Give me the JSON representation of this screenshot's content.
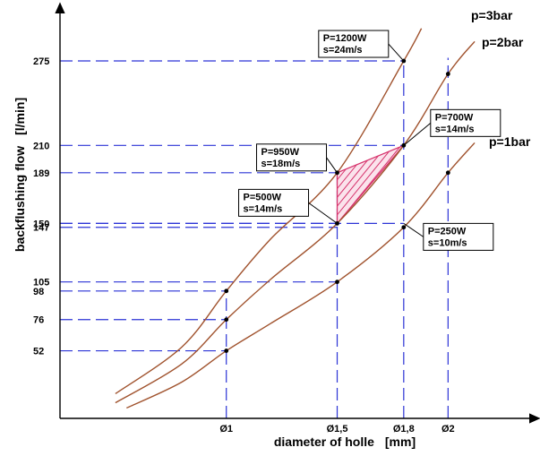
{
  "chart_data": {
    "type": "line",
    "title": "",
    "xlabel": "diameter of holle",
    "xunit": "[mm]",
    "ylabel": "backflushing flow",
    "yunit": "[l/min]",
    "xticks": [
      {
        "value": 1.0,
        "label": "Ø1"
      },
      {
        "value": 1.5,
        "label": "Ø1,5"
      },
      {
        "value": 1.8,
        "label": "Ø1,8"
      },
      {
        "value": 2.0,
        "label": "Ø2"
      }
    ],
    "yticks": [
      52,
      76,
      98,
      105,
      147,
      150,
      189,
      210,
      275
    ],
    "xlim": [
      0.25,
      2.35
    ],
    "ylim": [
      0,
      315
    ],
    "grid": false,
    "series": [
      {
        "name": "p=3bar",
        "color": "#a0522d",
        "x": [
          0.5,
          0.8,
          1.0,
          1.2,
          1.5,
          1.8,
          1.88
        ],
        "y": [
          19,
          55,
          98,
          138,
          189,
          275,
          300
        ]
      },
      {
        "name": "p=2bar",
        "color": "#a0522d",
        "x": [
          0.5,
          0.8,
          1.0,
          1.2,
          1.5,
          1.8,
          2.0,
          2.12
        ],
        "y": [
          12,
          42,
          76,
          107,
          150,
          210,
          265,
          290
        ]
      },
      {
        "name": "p=1bar",
        "color": "#a0522d",
        "x": [
          0.55,
          0.8,
          1.0,
          1.2,
          1.5,
          1.8,
          2.0,
          2.12
        ],
        "y": [
          8,
          28,
          52,
          73,
          105,
          147,
          189,
          212
        ]
      }
    ],
    "points": [
      {
        "x": 1.0,
        "y": 98
      },
      {
        "x": 1.0,
        "y": 76
      },
      {
        "x": 1.0,
        "y": 52
      },
      {
        "x": 1.5,
        "y": 189
      },
      {
        "x": 1.5,
        "y": 150
      },
      {
        "x": 1.5,
        "y": 105
      },
      {
        "x": 1.8,
        "y": 275
      },
      {
        "x": 1.8,
        "y": 210
      },
      {
        "x": 1.8,
        "y": 147
      },
      {
        "x": 2.0,
        "y": 265
      },
      {
        "x": 2.0,
        "y": 189
      }
    ],
    "guides": [
      {
        "x": 1.0,
        "y": 98
      },
      {
        "x": 1.0,
        "y": 76
      },
      {
        "x": 1.0,
        "y": 52
      },
      {
        "x": 1.5,
        "y": 189
      },
      {
        "x": 1.5,
        "y": 150
      },
      {
        "x": 1.5,
        "y": 147
      },
      {
        "x": 1.5,
        "y": 105
      },
      {
        "x": 1.8,
        "y": 275
      },
      {
        "x": 1.8,
        "y": 210
      },
      {
        "x": 1.8,
        "y": 150
      }
    ],
    "vertical_guides": [
      1.0,
      1.5,
      1.8,
      2.0
    ],
    "shaded_region": {
      "color": "#d6336c",
      "vertices": [
        [
          1.5,
          189
        ],
        [
          1.8,
          210
        ],
        [
          1.5,
          150
        ]
      ]
    },
    "annotations": [
      {
        "lines": [
          "P=1200W",
          "s=24m/s"
        ],
        "at": [
          1.8,
          275
        ]
      },
      {
        "lines": [
          "P=700W",
          "s=14m/s"
        ],
        "at": [
          1.8,
          210
        ]
      },
      {
        "lines": [
          "P=950W",
          "s=18m/s"
        ],
        "at": [
          1.5,
          189
        ]
      },
      {
        "lines": [
          "P=500W",
          "s=14m/s"
        ],
        "at": [
          1.5,
          150
        ]
      },
      {
        "lines": [
          "P=250W",
          "s=10m/s"
        ],
        "at": [
          1.8,
          150
        ]
      }
    ],
    "series_labels": [
      "p=3bar",
      "p=2bar",
      "p=1bar"
    ]
  }
}
